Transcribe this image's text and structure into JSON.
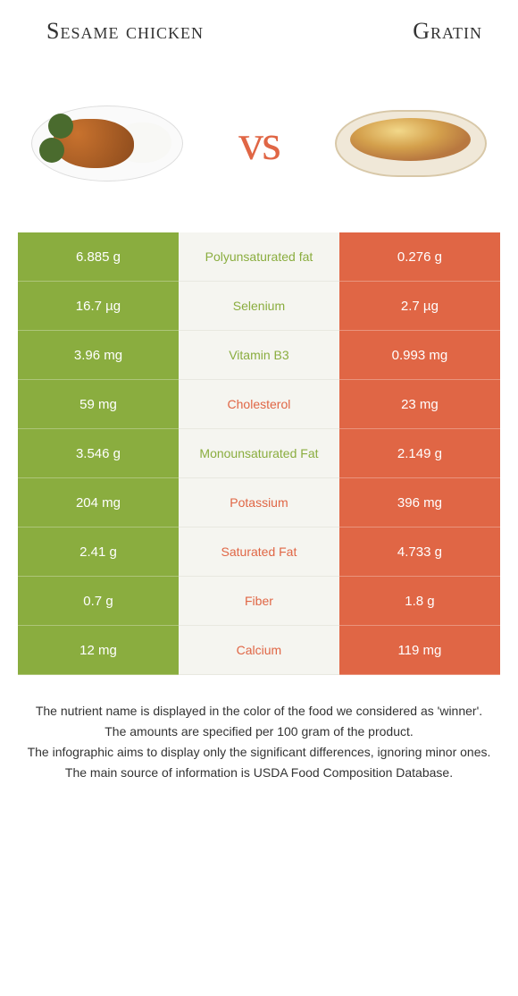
{
  "colors": {
    "left_bg": "#8aad3f",
    "right_bg": "#e06645",
    "middle_bg": "#f5f5f0",
    "vs_color": "#e06645",
    "winner_left_text": "#8aad3f",
    "winner_right_text": "#e06645"
  },
  "header": {
    "left_title": "Sesame chicken",
    "right_title": "Gratin",
    "vs": "vs"
  },
  "rows": [
    {
      "left": "6.885 g",
      "label": "Polyunsaturated fat",
      "right": "0.276 g",
      "winner": "left"
    },
    {
      "left": "16.7 µg",
      "label": "Selenium",
      "right": "2.7 µg",
      "winner": "left"
    },
    {
      "left": "3.96 mg",
      "label": "Vitamin B3",
      "right": "0.993 mg",
      "winner": "left"
    },
    {
      "left": "59 mg",
      "label": "Cholesterol",
      "right": "23 mg",
      "winner": "right"
    },
    {
      "left": "3.546 g",
      "label": "Monounsaturated Fat",
      "right": "2.149 g",
      "winner": "left"
    },
    {
      "left": "204 mg",
      "label": "Potassium",
      "right": "396 mg",
      "winner": "right"
    },
    {
      "left": "2.41 g",
      "label": "Saturated Fat",
      "right": "4.733 g",
      "winner": "right"
    },
    {
      "left": "0.7 g",
      "label": "Fiber",
      "right": "1.8 g",
      "winner": "right"
    },
    {
      "left": "12 mg",
      "label": "Calcium",
      "right": "119 mg",
      "winner": "right"
    }
  ],
  "footer": {
    "line1": "The nutrient name is displayed in the color of the food we considered as 'winner'.",
    "line2": "The amounts are specified per 100 gram of the product.",
    "line3": "The infographic aims to display only the significant differences, ignoring minor ones.",
    "line4": "The main source of information is USDA Food Composition Database."
  }
}
